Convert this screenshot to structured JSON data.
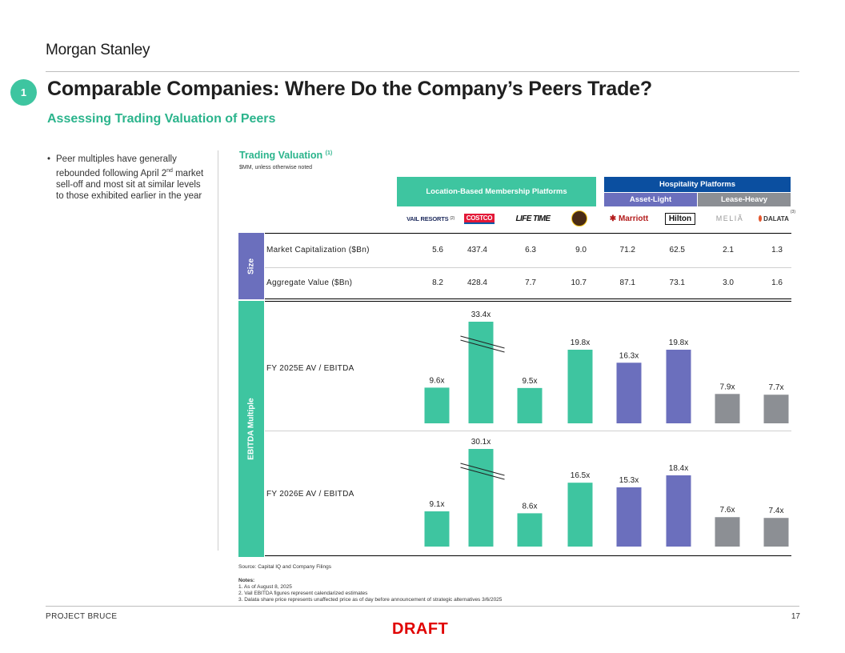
{
  "header": {
    "brand": "Morgan Stanley",
    "section_number": "1",
    "title": "Comparable Companies: Where Do the Company’s Peers Trade?",
    "subtitle": "Assessing Trading Valuation of Peers"
  },
  "commentary": {
    "bullet_prefix": "Peer multiples have generally rebounded following April 2",
    "bullet_superscript": "nd",
    "bullet_suffix": " market sell-off and most sit at similar levels to those exhibited earlier in the year"
  },
  "table": {
    "title": "Trading Valuation",
    "title_note": "(1)",
    "units": "$MM, unless otherwise noted",
    "groups": {
      "membership": "Location-Based Membership Platforms",
      "hospitality": "Hospitality Platforms",
      "asset_light": "Asset-Light",
      "lease_heavy": "Lease-Heavy"
    },
    "logos": {
      "vail": "VAIL RESORTS",
      "vail_note": "(2)",
      "costco": "COSTCO",
      "lifetime": "LIFE TIME",
      "marriott": "Marriott",
      "hilton": "Hilton",
      "melia": "MELIÃ",
      "dalata": "DALATA",
      "dalata_note": "(3)"
    },
    "size_label": "Size",
    "ebitda_label": "EBITDA Multiple",
    "rows": [
      {
        "label": "Market Capitalization ($Bn)",
        "values": [
          "5.6",
          "437.4",
          "6.3",
          "9.0",
          "71.2",
          "62.5",
          "2.1",
          "1.3"
        ]
      },
      {
        "label": "Aggregate Value ($Bn)",
        "values": [
          "8.2",
          "428.4",
          "7.7",
          "10.7",
          "87.1",
          "73.1",
          "3.0",
          "1.6"
        ]
      }
    ]
  },
  "chart_data": [
    {
      "type": "bar",
      "title": "FY 2025E AV / EBITDA",
      "categories": [
        "VAIL RESORTS",
        "COSTCO",
        "LIFE TIME",
        "Planet Fitness",
        "Marriott",
        "Hilton",
        "MELIÃ",
        "DALATA"
      ],
      "values": [
        9.6,
        33.4,
        9.5,
        19.8,
        16.3,
        19.8,
        7.9,
        7.7
      ],
      "labels": [
        "9.6x",
        "33.4x",
        "9.5x",
        "19.8x",
        "16.3x",
        "19.8x",
        "7.9x",
        "7.7x"
      ],
      "broken_axis": [
        false,
        true,
        false,
        false,
        false,
        false,
        false,
        false
      ],
      "colors": [
        "#3ec5a0",
        "#3ec5a0",
        "#3ec5a0",
        "#3ec5a0",
        "#6b6fbd",
        "#6b6fbd",
        "#8c8f94",
        "#8c8f94"
      ]
    },
    {
      "type": "bar",
      "title": "FY 2026E AV / EBITDA",
      "categories": [
        "VAIL RESORTS",
        "COSTCO",
        "LIFE TIME",
        "Planet Fitness",
        "Marriott",
        "Hilton",
        "MELIÃ",
        "DALATA"
      ],
      "values": [
        9.1,
        30.1,
        8.6,
        16.5,
        15.3,
        18.4,
        7.6,
        7.4
      ],
      "labels": [
        "9.1x",
        "30.1x",
        "8.6x",
        "16.5x",
        "15.3x",
        "18.4x",
        "7.6x",
        "7.4x"
      ],
      "broken_axis": [
        false,
        true,
        false,
        false,
        false,
        false,
        false,
        false
      ],
      "colors": [
        "#3ec5a0",
        "#3ec5a0",
        "#3ec5a0",
        "#3ec5a0",
        "#6b6fbd",
        "#6b6fbd",
        "#8c8f94",
        "#8c8f94"
      ]
    }
  ],
  "footer": {
    "source": "Source: Capital IQ and Company Filings",
    "notes_title": "Notes:",
    "notes": [
      "1.   As of August 8, 2025",
      "2.   Vail EBITDA figures represent calendarized estimates",
      "3.   Dalata share price represents unaffected price as of day before announcement of strategic alternatives 3/6/2025"
    ],
    "project": "PROJECT BRUCE",
    "page": "17",
    "draft": "DRAFT"
  }
}
